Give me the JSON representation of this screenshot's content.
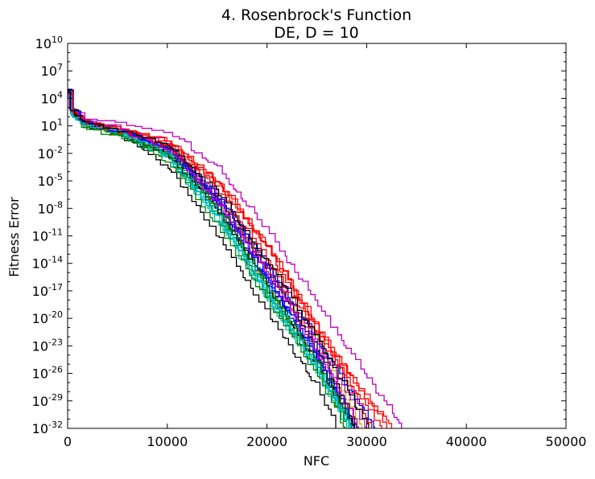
{
  "chart_data": {
    "type": "line",
    "title_line1": "4.   Rosenbrock's Function",
    "title_line2": "DE, D = 10",
    "xlabel": "NFC",
    "ylabel": "Fitness Error",
    "x_range": [
      0,
      50000
    ],
    "x_ticks": [
      "0",
      "10000",
      "20000",
      "30000",
      "40000",
      "50000"
    ],
    "y_scale": "log",
    "y_range_exponent": [
      -32,
      10
    ],
    "y_ticks": [
      {
        "base": "10",
        "exp": "10"
      },
      {
        "base": "10",
        "exp": "7"
      },
      {
        "base": "10",
        "exp": "4"
      },
      {
        "base": "10",
        "exp": "1"
      },
      {
        "base": "10",
        "exp": "-2"
      },
      {
        "base": "10",
        "exp": "-5"
      },
      {
        "base": "10",
        "exp": "-8"
      },
      {
        "base": "10",
        "exp": "-11"
      },
      {
        "base": "10",
        "exp": "-14"
      },
      {
        "base": "10",
        "exp": "-17"
      },
      {
        "base": "10",
        "exp": "-20"
      },
      {
        "base": "10",
        "exp": "-23"
      },
      {
        "base": "10",
        "exp": "-26"
      },
      {
        "base": "10",
        "exp": "-29"
      },
      {
        "base": "10",
        "exp": "-32"
      }
    ],
    "grid": false,
    "legend": "none",
    "series_colors": [
      "#0000ff",
      "#008000",
      "#ff0000",
      "#00bfbf",
      "#bf00bf",
      "#bfbf00",
      "#000000",
      "#0000ff",
      "#008000",
      "#ff0000",
      "#00bfbf",
      "#bf00bf",
      "#000000",
      "#0000ff",
      "#008000",
      "#ff0000",
      "#00bfbf",
      "#bf00bf",
      "#000000",
      "#008000",
      "#0000ff",
      "#ff0000",
      "#bf00bf",
      "#00bfbf",
      "#000000"
    ],
    "series_note_curves": [
      {
        "points": [
          [
            0,
            3.5
          ],
          [
            1500,
            1.5
          ],
          [
            5000,
            0.5
          ],
          [
            10000,
            -1.5
          ],
          [
            15000,
            -8.0
          ],
          [
            20000,
            -16.0
          ],
          [
            25000,
            -24.0
          ],
          [
            28500,
            -32
          ]
        ]
      },
      {
        "points": [
          [
            0,
            3.0
          ],
          [
            1500,
            1.4
          ],
          [
            5000,
            0.3
          ],
          [
            10000,
            -2.0
          ],
          [
            15000,
            -8.5
          ],
          [
            20000,
            -17.0
          ],
          [
            25000,
            -25.0
          ],
          [
            28000,
            -32
          ]
        ]
      },
      {
        "points": [
          [
            0,
            3.2
          ],
          [
            1500,
            1.5
          ],
          [
            5000,
            0.8
          ],
          [
            10000,
            -0.5
          ],
          [
            15000,
            -5.5
          ],
          [
            20000,
            -12.0
          ],
          [
            25000,
            -21.0
          ],
          [
            30500,
            -32
          ]
        ]
      },
      {
        "points": [
          [
            0,
            2.5
          ],
          [
            1500,
            1.2
          ],
          [
            5000,
            0.4
          ],
          [
            10000,
            -2.5
          ],
          [
            15000,
            -9.5
          ],
          [
            20000,
            -18.0
          ],
          [
            25000,
            -26.0
          ],
          [
            28000,
            -32
          ]
        ]
      },
      {
        "points": [
          [
            0,
            2.8
          ],
          [
            1500,
            1.6
          ],
          [
            5000,
            0.9
          ],
          [
            10000,
            -1.0
          ],
          [
            15000,
            -7.5
          ],
          [
            20000,
            -15.0
          ],
          [
            25000,
            -23.0
          ],
          [
            29000,
            -32
          ]
        ]
      },
      {
        "points": [
          [
            0,
            3.1
          ],
          [
            1500,
            1.3
          ],
          [
            5000,
            0.6
          ],
          [
            10000,
            -1.8
          ],
          [
            15000,
            -7.0
          ],
          [
            20000,
            -14.5
          ],
          [
            25000,
            -22.5
          ],
          [
            29500,
            -32
          ]
        ]
      },
      {
        "points": [
          [
            0,
            2.7
          ],
          [
            1500,
            1.1
          ],
          [
            5000,
            0.2
          ],
          [
            10000,
            -3.5
          ],
          [
            15000,
            -11.0
          ],
          [
            20000,
            -19.5
          ],
          [
            25000,
            -27.5
          ],
          [
            27000,
            -32
          ]
        ]
      },
      {
        "points": [
          [
            0,
            3.3
          ],
          [
            1500,
            1.5
          ],
          [
            5000,
            0.5
          ],
          [
            10000,
            -1.6
          ],
          [
            15000,
            -7.2
          ],
          [
            20000,
            -15.5
          ],
          [
            25000,
            -24.5
          ],
          [
            28500,
            -32
          ]
        ]
      },
      {
        "points": [
          [
            0,
            2.9
          ],
          [
            1500,
            1.2
          ],
          [
            5000,
            0.3
          ],
          [
            10000,
            -2.2
          ],
          [
            15000,
            -8.8
          ],
          [
            20000,
            -17.5
          ],
          [
            25000,
            -25.5
          ],
          [
            28500,
            -32
          ]
        ]
      },
      {
        "points": [
          [
            0,
            3.0
          ],
          [
            1500,
            1.5
          ],
          [
            5000,
            0.7
          ],
          [
            10000,
            -0.8
          ],
          [
            15000,
            -5.0
          ],
          [
            20000,
            -12.5
          ],
          [
            25000,
            -21.5
          ],
          [
            32500,
            -32
          ]
        ]
      },
      {
        "points": [
          [
            0,
            2.6
          ],
          [
            1500,
            1.3
          ],
          [
            5000,
            0.4
          ],
          [
            10000,
            -2.4
          ],
          [
            15000,
            -9.0
          ],
          [
            20000,
            -17.8
          ],
          [
            25000,
            -25.8
          ],
          [
            28200,
            -32
          ]
        ]
      },
      {
        "points": [
          [
            0,
            3.0
          ],
          [
            1500,
            2.0
          ],
          [
            5000,
            1.5
          ],
          [
            10000,
            0.5
          ],
          [
            15000,
            -3.5
          ],
          [
            20000,
            -10.5
          ],
          [
            25000,
            -18.5
          ],
          [
            33500,
            -32
          ]
        ]
      },
      {
        "points": [
          [
            0,
            3.4
          ],
          [
            1500,
            1.4
          ],
          [
            5000,
            0.6
          ],
          [
            10000,
            -1.2
          ],
          [
            15000,
            -7.0
          ],
          [
            20000,
            -14.8
          ],
          [
            25000,
            -23.2
          ],
          [
            29000,
            -32
          ]
        ]
      },
      {
        "points": [
          [
            0,
            2.8
          ],
          [
            1500,
            1.4
          ],
          [
            5000,
            0.5
          ],
          [
            10000,
            -1.7
          ],
          [
            15000,
            -7.6
          ],
          [
            20000,
            -16.2
          ],
          [
            25000,
            -24.2
          ],
          [
            28700,
            -32
          ]
        ]
      },
      {
        "points": [
          [
            0,
            3.1
          ],
          [
            1500,
            1.1
          ],
          [
            5000,
            0.1
          ],
          [
            10000,
            -2.8
          ],
          [
            15000,
            -9.8
          ],
          [
            20000,
            -18.2
          ],
          [
            25000,
            -26.2
          ],
          [
            27800,
            -32
          ]
        ]
      },
      {
        "points": [
          [
            0,
            3.2
          ],
          [
            1500,
            1.6
          ],
          [
            5000,
            0.8
          ],
          [
            10000,
            -0.6
          ],
          [
            15000,
            -5.2
          ],
          [
            20000,
            -12.2
          ],
          [
            25000,
            -21.2
          ],
          [
            32000,
            -32
          ]
        ]
      },
      {
        "points": [
          [
            0,
            2.7
          ],
          [
            1500,
            1.2
          ],
          [
            5000,
            0.3
          ],
          [
            10000,
            -2.3
          ],
          [
            15000,
            -9.3
          ],
          [
            20000,
            -17.3
          ],
          [
            25000,
            -25.6
          ],
          [
            28300,
            -32
          ]
        ]
      },
      {
        "points": [
          [
            0,
            3.0
          ],
          [
            1500,
            1.5
          ],
          [
            5000,
            0.6
          ],
          [
            10000,
            -1.3
          ],
          [
            15000,
            -6.8
          ],
          [
            20000,
            -14.6
          ],
          [
            25000,
            -22.8
          ],
          [
            30000,
            -32
          ]
        ]
      },
      {
        "points": [
          [
            0,
            2.9
          ],
          [
            1500,
            1.3
          ],
          [
            5000,
            0.4
          ],
          [
            10000,
            -2.0
          ],
          [
            15000,
            -8.2
          ],
          [
            20000,
            -16.8
          ],
          [
            25000,
            -25.0
          ],
          [
            28800,
            -32
          ]
        ]
      },
      {
        "points": [
          [
            0,
            3.0
          ],
          [
            1500,
            1.0
          ],
          [
            5000,
            -0.2
          ],
          [
            10000,
            -1.9
          ],
          [
            15000,
            -8.0
          ],
          [
            20000,
            -16.4
          ],
          [
            25000,
            -24.8
          ],
          [
            28600,
            -32
          ]
        ]
      },
      {
        "points": [
          [
            0,
            3.1
          ],
          [
            1500,
            1.4
          ],
          [
            5000,
            0.5
          ],
          [
            10000,
            -1.4
          ],
          [
            15000,
            -6.6
          ],
          [
            20000,
            -14.2
          ],
          [
            25000,
            -22.4
          ],
          [
            30800,
            -32
          ]
        ]
      },
      {
        "points": [
          [
            0,
            2.9
          ],
          [
            1500,
            1.3
          ],
          [
            5000,
            0.5
          ],
          [
            10000,
            -1.1
          ],
          [
            15000,
            -6.0
          ],
          [
            20000,
            -13.6
          ],
          [
            25000,
            -22.0
          ],
          [
            31500,
            -32
          ]
        ]
      },
      {
        "points": [
          [
            0,
            3.0
          ],
          [
            1500,
            1.4
          ],
          [
            5000,
            0.6
          ],
          [
            10000,
            -1.5
          ],
          [
            15000,
            -7.4
          ],
          [
            20000,
            -15.2
          ],
          [
            25000,
            -23.8
          ],
          [
            29200,
            -32
          ]
        ]
      },
      {
        "points": [
          [
            0,
            2.8
          ],
          [
            1500,
            1.2
          ],
          [
            5000,
            0.4
          ],
          [
            10000,
            -2.1
          ],
          [
            15000,
            -8.6
          ],
          [
            20000,
            -17.1
          ],
          [
            25000,
            -25.3
          ],
          [
            28400,
            -32
          ]
        ]
      },
      {
        "points": [
          [
            0,
            3.2
          ],
          [
            1500,
            1.5
          ],
          [
            5000,
            0.6
          ],
          [
            10000,
            -1.0
          ],
          [
            15000,
            -6.2
          ],
          [
            20000,
            -13.8
          ],
          [
            25000,
            -22.2
          ],
          [
            30200,
            -32
          ]
        ]
      }
    ]
  }
}
